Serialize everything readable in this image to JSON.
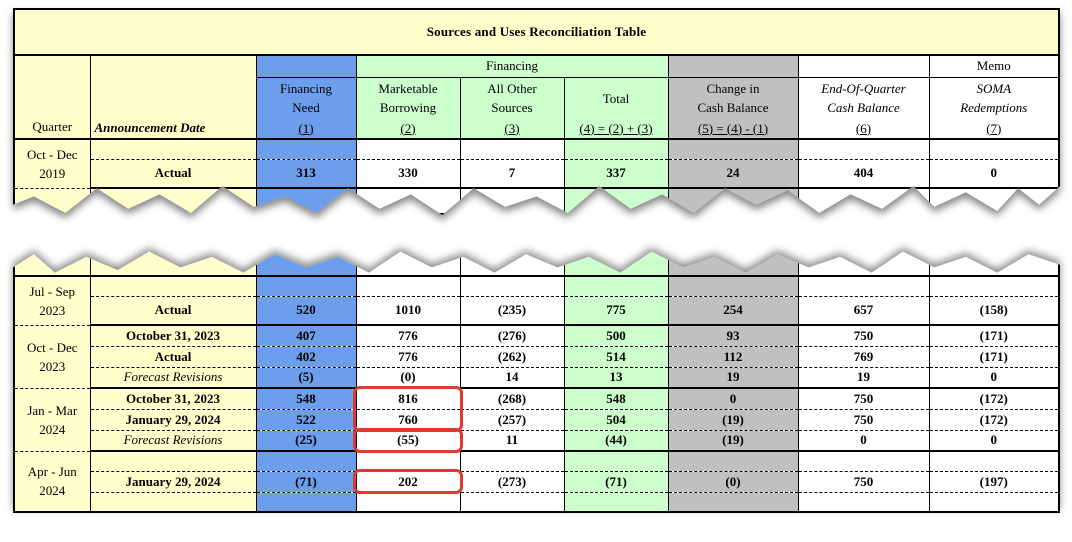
{
  "title": "Sources and Uses Reconciliation Table",
  "colors": {
    "band_yellow": "#FFFFCC",
    "column_blue": "#6D9EEB",
    "column_green": "#CCFFCC",
    "column_gray": "#C0C0C0",
    "highlight_red": "#E0392D"
  },
  "header": {
    "quarter": "Quarter",
    "announcement_date": "Announcement Date",
    "financing_group": "Financing",
    "memo_group": "Memo",
    "columns": [
      {
        "line1": "Financing",
        "line2": "Need",
        "num": "(1)"
      },
      {
        "line1": "Marketable",
        "line2": "Borrowing",
        "num": "(2)"
      },
      {
        "line1": "All Other",
        "line2": "Sources",
        "num": "(3)"
      },
      {
        "line1": "",
        "line2": "Total",
        "num": "(4) = (2) + (3)"
      },
      {
        "line1": "Change in",
        "line2": "Cash Balance",
        "num": "(5) = (4) - (1)"
      },
      {
        "line1": "End-Of-Quarter",
        "line2": "Cash Balance",
        "num": "(6)"
      },
      {
        "line1": "SOMA",
        "line2": "Redemptions",
        "num": "(7)"
      }
    ]
  },
  "top_section": {
    "groups": [
      {
        "quarter_line1": "Oct - Dec",
        "quarter_line2": "2019",
        "rows": [
          {
            "label": "",
            "style": "blank",
            "values": [
              "",
              "",
              "",
              "",
              "",
              "",
              ""
            ]
          },
          {
            "label": "Actual",
            "style": "bold",
            "values": [
              "313",
              "330",
              "7",
              "337",
              "24",
              "404",
              "0"
            ]
          }
        ]
      }
    ]
  },
  "bottom_section": {
    "groups": [
      {
        "quarter_line1": "Jul - Sep",
        "quarter_line2": "2023",
        "rows": [
          {
            "label": "",
            "style": "blank",
            "values": [
              "",
              "",
              "",
              "",
              "",
              "",
              ""
            ]
          },
          {
            "label": "Actual",
            "style": "bold",
            "values": [
              "520",
              "1010",
              "(235)",
              "775",
              "254",
              "657",
              "(158)"
            ]
          }
        ]
      },
      {
        "quarter_line1": "Oct - Dec",
        "quarter_line2": "2023",
        "rows": [
          {
            "label": "October 31, 2023",
            "style": "bold",
            "values": [
              "407",
              "776",
              "(276)",
              "500",
              "93",
              "750",
              "(171)"
            ]
          },
          {
            "label": "Actual",
            "style": "bold",
            "values": [
              "402",
              "776",
              "(262)",
              "514",
              "112",
              "769",
              "(171)"
            ]
          },
          {
            "label": "Forecast Revisions",
            "style": "italic",
            "values": [
              "(5)",
              "(0)",
              "14",
              "13",
              "19",
              "19",
              "0"
            ]
          }
        ]
      },
      {
        "quarter_line1": "Jan - Mar",
        "quarter_line2": "2024",
        "rows": [
          {
            "label": "October 31, 2023",
            "style": "bold",
            "values": [
              "548",
              "816",
              "(268)",
              "548",
              "0",
              "750",
              "(172)"
            ],
            "highlights": {
              "1": "jan-mar-borrowing"
            }
          },
          {
            "label": "January 29, 2024",
            "style": "bold",
            "values": [
              "522",
              "760",
              "(257)",
              "504",
              "(19)",
              "750",
              "(172)"
            ],
            "highlights": {
              "1": "jan-mar-borrowing"
            }
          },
          {
            "label": "Forecast Revisions",
            "style": "italic",
            "values": [
              "(25)",
              "(55)",
              "11",
              "(44)",
              "(19)",
              "0",
              "0"
            ],
            "highlights": {
              "1": "jan-mar-revision"
            }
          }
        ]
      },
      {
        "quarter_line1": "Apr - Jun",
        "quarter_line2": "2024",
        "rows": [
          {
            "label": "",
            "style": "blank",
            "values": [
              "",
              "",
              "",
              "",
              "",
              "",
              ""
            ]
          },
          {
            "label": "January 29, 2024",
            "style": "bold",
            "values": [
              "(71)",
              "202",
              "(273)",
              "(71)",
              "(0)",
              "750",
              "(197)"
            ],
            "highlights": {
              "1": "apr-jun-borrowing"
            }
          },
          {
            "label": "",
            "style": "blank",
            "values": [
              "",
              "",
              "",
              "",
              "",
              "",
              ""
            ]
          }
        ]
      }
    ]
  }
}
